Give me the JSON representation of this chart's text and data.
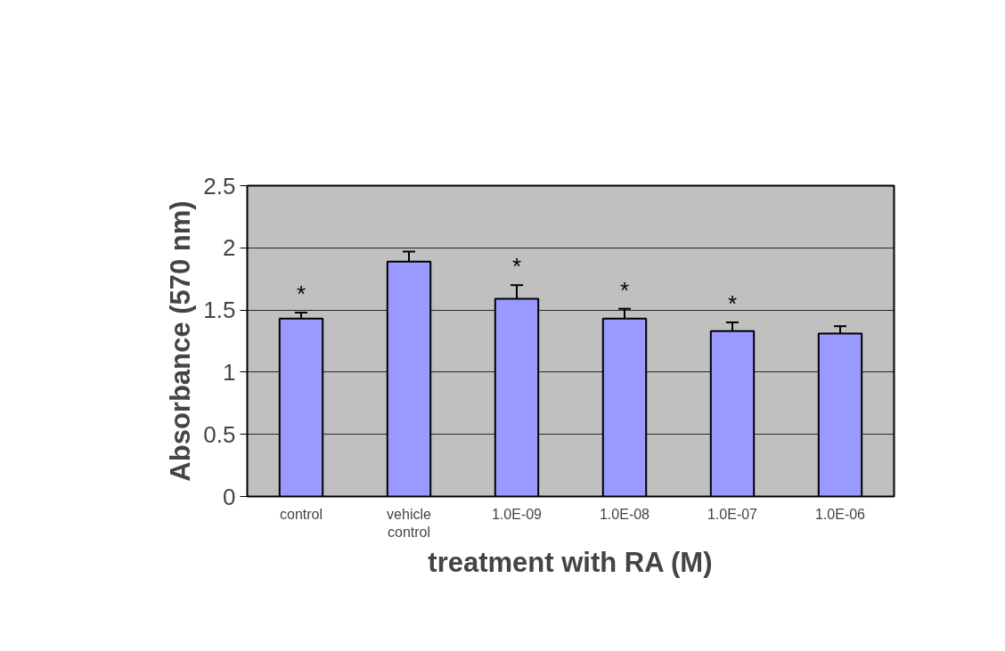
{
  "chart_data": {
    "type": "bar",
    "xlabel": "treatment with RA (M)",
    "ylabel": "Absorbance (570 nm)",
    "categories": [
      "control",
      "vehicle\ncontrol",
      "1.0E-09",
      "1.0E-08",
      "1.0E-07",
      "1.0E-06"
    ],
    "values": [
      1.43,
      1.89,
      1.59,
      1.43,
      1.33,
      1.31
    ],
    "errors": [
      0.05,
      0.08,
      0.11,
      0.08,
      0.07,
      0.06
    ],
    "color": "#9999ff",
    "ylim": [
      0,
      2.5
    ],
    "yticks": [
      0,
      0.5,
      1,
      1.5,
      2,
      2.5
    ],
    "grid": "y",
    "annotations": [
      {
        "text": "*",
        "x": "control",
        "y": 1.43
      },
      {
        "text": "*",
        "x": "1.0E-09",
        "y": 1.59
      },
      {
        "text": "*",
        "x": "1.0E-08",
        "y": 1.43
      },
      {
        "text": "*",
        "x": "1.0E-07",
        "y": 1.33
      }
    ]
  }
}
